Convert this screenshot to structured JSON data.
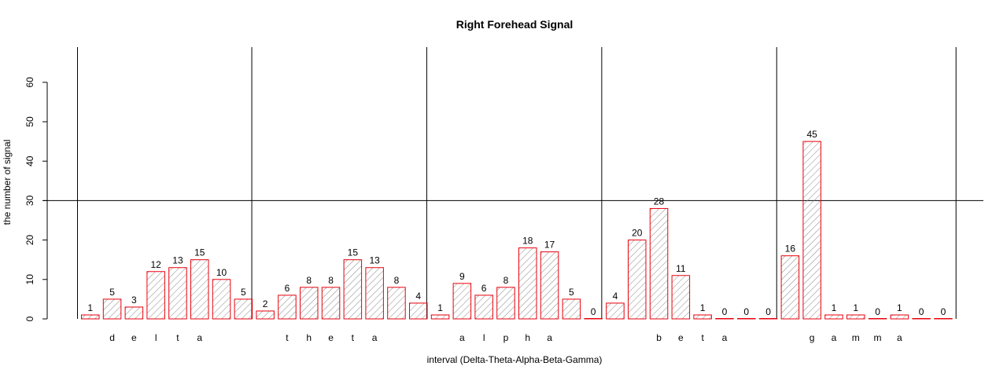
{
  "chart_data": {
    "type": "bar",
    "title": "Right Forehead Signal",
    "xlabel": "interval (Delta-Theta-Alpha-Beta-Gamma)",
    "ylabel": "the number of signal",
    "ylim": [
      0,
      70
    ],
    "yticks": [
      0,
      10,
      20,
      30,
      40,
      50,
      60
    ],
    "hline": 30,
    "groups": [
      {
        "label_letters": [
          "d",
          "e",
          "l",
          "t",
          "a"
        ],
        "values": [
          1,
          5,
          3,
          12,
          13,
          15,
          10,
          5
        ]
      },
      {
        "label_letters": [
          "t",
          "h",
          "e",
          "t",
          "a"
        ],
        "values": [
          2,
          6,
          8,
          8,
          15,
          13,
          8,
          4
        ]
      },
      {
        "label_letters": [
          "a",
          "l",
          "p",
          "h",
          "a"
        ],
        "values": [
          1,
          9,
          6,
          8,
          18,
          17,
          5,
          0
        ]
      },
      {
        "label_letters": [
          "b",
          "e",
          "t",
          "a"
        ],
        "values": [
          4,
          20,
          28,
          11,
          1,
          0,
          0,
          0
        ]
      },
      {
        "label_letters": [
          "g",
          "a",
          "m",
          "m",
          "a"
        ],
        "values": [
          16,
          45,
          1,
          1,
          0,
          1,
          0,
          0
        ]
      }
    ],
    "bar_border_color": "#e8000b",
    "bar_fill_color": "#ffffff",
    "hatch_color": "#888888"
  }
}
